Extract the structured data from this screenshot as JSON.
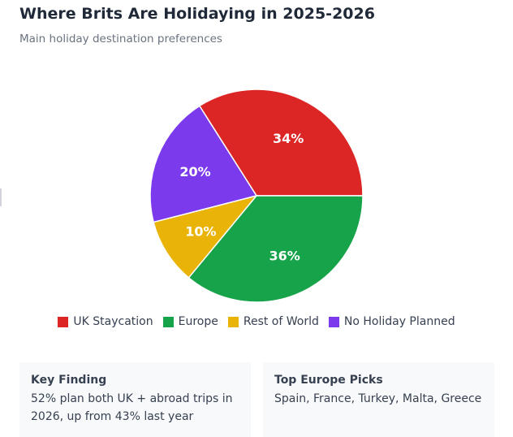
{
  "chart_data": {
    "type": "pie",
    "title": "Where Brits Are Holidaying in 2025-2026",
    "subtitle": "Main holiday destination preferences",
    "slices": [
      {
        "label": "UK Staycation",
        "value": 34,
        "display": "34%",
        "color": "#dc2626"
      },
      {
        "label": "No Holiday Planned",
        "value": 20,
        "display": "20%",
        "color": "#7c3aed"
      },
      {
        "label": "Rest of World",
        "value": 10,
        "display": "10%",
        "color": "#eab308"
      },
      {
        "label": "Europe",
        "value": 36,
        "display": "36%",
        "color": "#16a34a"
      }
    ],
    "legend": [
      {
        "label": "UK Staycation",
        "color": "#dc2626"
      },
      {
        "label": "Europe",
        "color": "#16a34a"
      },
      {
        "label": "Rest of World",
        "color": "#eab308"
      },
      {
        "label": "No Holiday Planned",
        "color": "#7c3aed"
      }
    ],
    "legend_position": "bottom"
  },
  "cards": [
    {
      "title": "Key Finding",
      "text_lines": [
        "52% plan both UK + abroad trips in",
        "2026, up from 43% last year"
      ]
    },
    {
      "title": "Top Europe Picks",
      "text_lines": [
        "Spain, France, Turkey, Malta, Greece"
      ]
    }
  ]
}
